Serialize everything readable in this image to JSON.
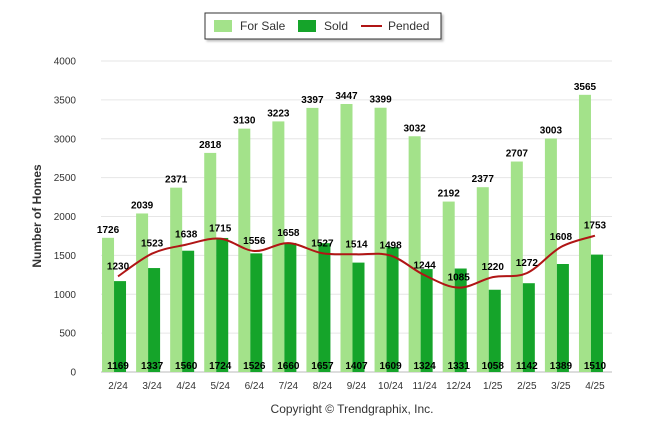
{
  "chart_data": {
    "type": "bar",
    "categories": [
      "2/24",
      "3/24",
      "4/24",
      "5/24",
      "6/24",
      "7/24",
      "8/24",
      "9/24",
      "10/24",
      "11/24",
      "12/24",
      "1/25",
      "2/25",
      "3/25",
      "4/25"
    ],
    "series": [
      {
        "name": "For Sale",
        "kind": "bar",
        "color": "#a3e28a",
        "values": [
          1726,
          2039,
          2371,
          2818,
          3130,
          3223,
          3397,
          3447,
          3399,
          3032,
          2192,
          2377,
          2707,
          3003,
          3565
        ]
      },
      {
        "name": "Sold",
        "kind": "bar",
        "color": "#15a42a",
        "values": [
          1169,
          1337,
          1560,
          1724,
          1526,
          1660,
          1657,
          1407,
          1609,
          1324,
          1331,
          1058,
          1142,
          1389,
          1510
        ]
      },
      {
        "name": "Pended",
        "kind": "line",
        "color": "#b01515",
        "values": [
          1230,
          1523,
          1638,
          1715,
          1556,
          1658,
          1527,
          1514,
          1498,
          1244,
          1085,
          1220,
          1272,
          1608,
          1753
        ]
      }
    ],
    "ylabel": "Number of Homes",
    "xlabel": "",
    "ylim": [
      0,
      4000
    ],
    "yticks": [
      0,
      500,
      1000,
      1500,
      2000,
      2500,
      3000,
      3500,
      4000
    ],
    "grid": true,
    "legend_position": "top-center",
    "footer": "Copyright © Trendgraphix, Inc."
  }
}
